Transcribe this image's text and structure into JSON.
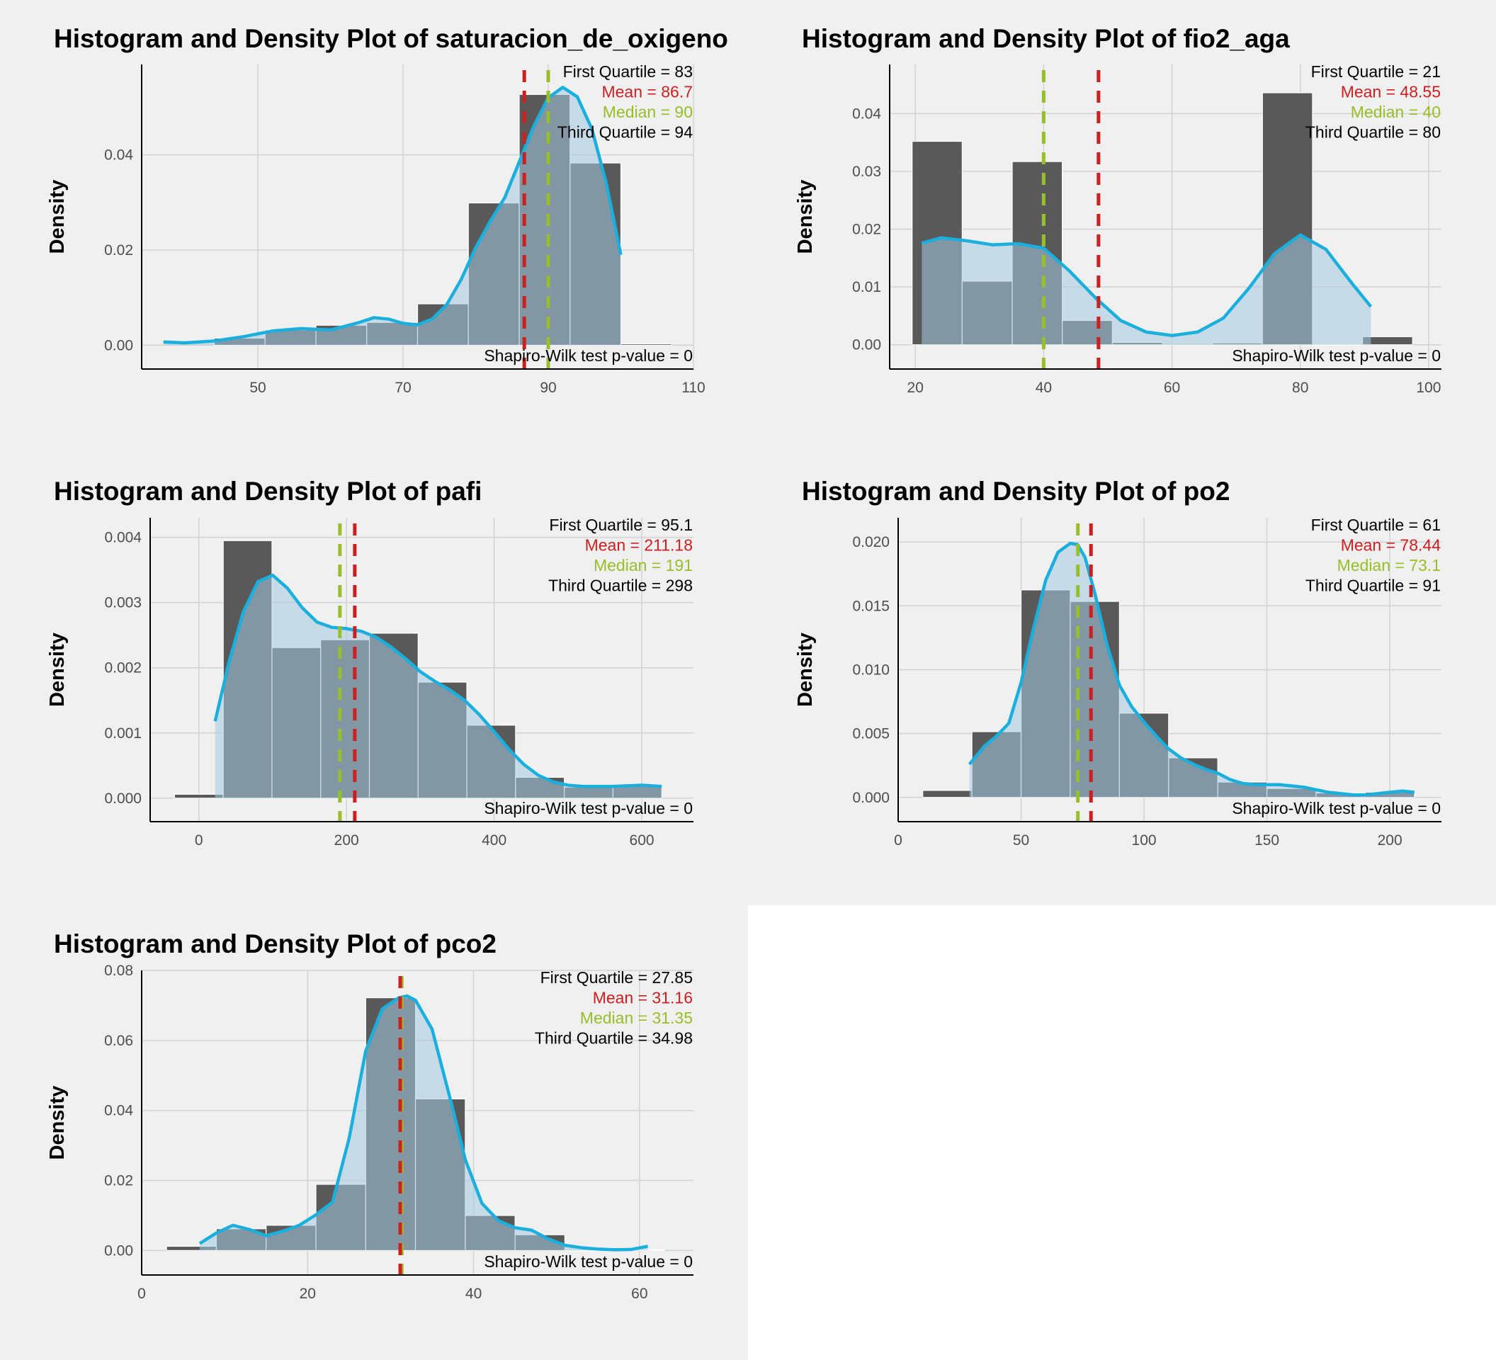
{
  "style": {
    "page_bg": "#f0f0f0",
    "outer_bg": "#ffffff",
    "hist_fill": "#595959",
    "overlap_fill": "#3a5a78",
    "density_fill": "#a5c8e1",
    "density_line": "#1aafdc",
    "mean_color": "#cc1f1f",
    "median_color": "#96bf2a",
    "text_color": "#000000"
  },
  "chart_data": [
    {
      "type": "bar",
      "title": "Histogram and Density Plot of saturacion_de_oxigeno",
      "ylabel": "Density",
      "xlabel": "",
      "xlim": [
        34,
        110
      ],
      "ylim": [
        -0.005,
        0.059
      ],
      "xticks": [
        50,
        70,
        90,
        110
      ],
      "xtick_labels": [
        "50",
        "70",
        "90",
        "110"
      ],
      "yticks": [
        0.0,
        0.02,
        0.04
      ],
      "ytick_labels": [
        "0.00",
        "0.02",
        "0.04"
      ],
      "bins": [
        {
          "x0": 44,
          "x1": 51,
          "value": 0.0015
        },
        {
          "x0": 51,
          "x1": 58,
          "value": 0.0032
        },
        {
          "x0": 58,
          "x1": 65,
          "value": 0.0042
        },
        {
          "x0": 65,
          "x1": 72,
          "value": 0.0048
        },
        {
          "x0": 72,
          "x1": 79,
          "value": 0.0087
        },
        {
          "x0": 79,
          "x1": 86,
          "value": 0.0299
        },
        {
          "x0": 86,
          "x1": 93,
          "value": 0.0527
        },
        {
          "x0": 93,
          "x1": 100,
          "value": 0.0383
        },
        {
          "x0": 100,
          "x1": 107,
          "value": 0.0003
        }
      ],
      "density": {
        "x": [
          37,
          40,
          44,
          48,
          52,
          56,
          60,
          64,
          66,
          68,
          70,
          72,
          74,
          76,
          78,
          80,
          82,
          84,
          86,
          88,
          90,
          92,
          94,
          96,
          98,
          100
        ],
        "y": [
          0.0007,
          0.0005,
          0.0009,
          0.0018,
          0.003,
          0.0035,
          0.0032,
          0.0048,
          0.0058,
          0.0055,
          0.0046,
          0.0043,
          0.0055,
          0.0085,
          0.0138,
          0.0205,
          0.026,
          0.031,
          0.0385,
          0.046,
          0.052,
          0.0542,
          0.0522,
          0.0455,
          0.034,
          0.019
        ]
      },
      "mean": 86.7,
      "median": 90,
      "annotations": {
        "first_quartile": "First Quartile = 83",
        "mean": "Mean = 86.7",
        "median": "Median = 90",
        "third_quartile": "Third Quartile = 94",
        "shapiro": "Shapiro-Wilk test p-value = 0"
      }
    },
    {
      "type": "bar",
      "title": "Histogram and Density Plot of fio2_aga",
      "ylabel": "Density",
      "xlabel": "",
      "xlim": [
        16,
        102
      ],
      "ylim": [
        -0.0042,
        0.0485
      ],
      "xticks": [
        20,
        40,
        60,
        80,
        100
      ],
      "xtick_labels": [
        "20",
        "40",
        "60",
        "80",
        "100"
      ],
      "yticks": [
        0.0,
        0.01,
        0.02,
        0.03,
        0.04
      ],
      "ytick_labels": [
        "0.00",
        "0.01",
        "0.02",
        "0.03",
        "0.04"
      ],
      "bins": [
        {
          "x0": 19.5,
          "x1": 27.3,
          "value": 0.0352
        },
        {
          "x0": 27.3,
          "x1": 35.1,
          "value": 0.011
        },
        {
          "x0": 35.1,
          "x1": 42.9,
          "value": 0.0317
        },
        {
          "x0": 42.9,
          "x1": 50.7,
          "value": 0.0042
        },
        {
          "x0": 50.7,
          "x1": 58.5,
          "value": 0.0004
        },
        {
          "x0": 58.5,
          "x1": 66.3,
          "value": 0.0002
        },
        {
          "x0": 66.3,
          "x1": 74.1,
          "value": 0.0003
        },
        {
          "x0": 74.1,
          "x1": 81.9,
          "value": 0.0436
        },
        {
          "x0": 81.9,
          "x1": 89.7,
          "value": 0.0
        },
        {
          "x0": 89.7,
          "x1": 97.5,
          "value": 0.0014
        }
      ],
      "density": {
        "x": [
          21,
          24,
          28,
          32,
          36,
          40,
          44,
          48,
          52,
          56,
          60,
          64,
          68,
          72,
          76,
          80,
          84,
          88,
          91
        ],
        "y": [
          0.0176,
          0.0185,
          0.018,
          0.0173,
          0.0175,
          0.0167,
          0.0128,
          0.0082,
          0.0042,
          0.0022,
          0.0016,
          0.0022,
          0.0046,
          0.0098,
          0.0158,
          0.019,
          0.0165,
          0.0107,
          0.0066
        ]
      },
      "mean": 48.55,
      "median": 40,
      "annotations": {
        "first_quartile": "First Quartile = 21",
        "mean": "Mean = 48.55",
        "median": "Median = 40",
        "third_quartile": "Third Quartile = 80",
        "shapiro": "Shapiro-Wilk test p-value = 0"
      }
    },
    {
      "type": "bar",
      "title": "Histogram and Density Plot of pafi",
      "ylabel": "Density",
      "xlabel": "",
      "xlim": [
        -66,
        670
      ],
      "ylim": [
        -0.00036,
        0.0043
      ],
      "xticks": [
        0,
        200,
        400,
        600
      ],
      "xtick_labels": [
        "0",
        "200",
        "400",
        "600"
      ],
      "yticks": [
        0.0,
        0.001,
        0.002,
        0.003,
        0.004
      ],
      "ytick_labels": [
        "0.000",
        "0.001",
        "0.002",
        "0.003",
        "0.004"
      ],
      "bins": [
        {
          "x0": -33,
          "x1": 33,
          "value": 6e-05
        },
        {
          "x0": 33,
          "x1": 99,
          "value": 0.00395
        },
        {
          "x0": 99,
          "x1": 165,
          "value": 0.00231
        },
        {
          "x0": 165,
          "x1": 231,
          "value": 0.00243
        },
        {
          "x0": 231,
          "x1": 297,
          "value": 0.00253
        },
        {
          "x0": 297,
          "x1": 363,
          "value": 0.00178
        },
        {
          "x0": 363,
          "x1": 429,
          "value": 0.00112
        },
        {
          "x0": 429,
          "x1": 495,
          "value": 0.00032
        },
        {
          "x0": 495,
          "x1": 561,
          "value": 0.00017
        },
        {
          "x0": 561,
          "x1": 627,
          "value": 0.00019
        }
      ],
      "density": {
        "x": [
          22,
          40,
          60,
          80,
          100,
          120,
          140,
          160,
          180,
          200,
          220,
          240,
          260,
          280,
          300,
          320,
          340,
          360,
          380,
          400,
          420,
          440,
          460,
          480,
          500,
          520,
          540,
          560,
          580,
          600,
          627
        ],
        "y": [
          0.00118,
          0.00205,
          0.00285,
          0.00332,
          0.00342,
          0.00322,
          0.00292,
          0.0027,
          0.00262,
          0.0026,
          0.00256,
          0.00247,
          0.00232,
          0.00214,
          0.00194,
          0.00179,
          0.00166,
          0.0015,
          0.00128,
          0.00102,
          0.00075,
          0.00052,
          0.00035,
          0.00025,
          0.0002,
          0.00018,
          0.00018,
          0.00018,
          0.00019,
          0.0002,
          0.00018
        ]
      },
      "mean": 211.18,
      "median": 191,
      "annotations": {
        "first_quartile": "First Quartile = 95.1",
        "mean": "Mean = 211.18",
        "median": "Median = 191",
        "third_quartile": "Third Quartile = 298",
        "shapiro": "Shapiro-Wilk test p-value = 0"
      }
    },
    {
      "type": "bar",
      "title": "Histogram and Density Plot of po2",
      "ylabel": "Density",
      "xlabel": "",
      "xlim": [
        0,
        221
      ],
      "ylim": [
        -0.0019,
        0.0219
      ],
      "xticks": [
        0,
        50,
        100,
        150,
        200
      ],
      "xtick_labels": [
        "0",
        "50",
        "100",
        "150",
        "200"
      ],
      "yticks": [
        0.0,
        0.005,
        0.01,
        0.015,
        0.02
      ],
      "ytick_labels": [
        "0.000",
        "0.005",
        "0.010",
        "0.015",
        "0.020"
      ],
      "bins": [
        {
          "x0": 10,
          "x1": 30,
          "value": 0.00055
        },
        {
          "x0": 30,
          "x1": 50,
          "value": 0.00515
        },
        {
          "x0": 50,
          "x1": 70,
          "value": 0.01625
        },
        {
          "x0": 70,
          "x1": 90,
          "value": 0.01535
        },
        {
          "x0": 90,
          "x1": 110,
          "value": 0.0066
        },
        {
          "x0": 110,
          "x1": 130,
          "value": 0.0031
        },
        {
          "x0": 130,
          "x1": 150,
          "value": 0.0012
        },
        {
          "x0": 150,
          "x1": 170,
          "value": 0.0007
        },
        {
          "x0": 170,
          "x1": 190,
          "value": 0.00035
        },
        {
          "x0": 190,
          "x1": 210,
          "value": 0.0004
        }
      ],
      "density": {
        "x": [
          29,
          35,
          40,
          45,
          50,
          55,
          60,
          65,
          70,
          73,
          76,
          80,
          85,
          90,
          95,
          100,
          105,
          110,
          115,
          120,
          125,
          130,
          135,
          140,
          145,
          150,
          155,
          160,
          165,
          170,
          175,
          180,
          185,
          190,
          195,
          200,
          205,
          210
        ],
        "y": [
          0.0026,
          0.004,
          0.0048,
          0.0058,
          0.009,
          0.0132,
          0.017,
          0.0192,
          0.0199,
          0.0198,
          0.0188,
          0.016,
          0.0119,
          0.0088,
          0.0071,
          0.0059,
          0.0048,
          0.0038,
          0.0031,
          0.0026,
          0.0022,
          0.0019,
          0.0014,
          0.0011,
          0.001,
          0.001,
          0.001,
          0.0009,
          0.0008,
          0.0006,
          0.0004,
          0.0003,
          0.0002,
          0.0002,
          0.0003,
          0.0004,
          0.0005,
          0.0004
        ]
      },
      "mean": 78.44,
      "median": 73.1,
      "annotations": {
        "first_quartile": "First Quartile = 61",
        "mean": "Mean = 78.44",
        "median": "Median = 73.1",
        "third_quartile": "Third Quartile = 91",
        "shapiro": "Shapiro-Wilk test p-value = 0"
      }
    },
    {
      "type": "bar",
      "title": "Histogram and Density Plot of pco2",
      "ylabel": "Density",
      "xlabel": "",
      "xlim": [
        0,
        66.5
      ],
      "ylim": [
        -0.007,
        0.08
      ],
      "xticks": [
        0,
        20,
        40,
        60
      ],
      "xtick_labels": [
        "0",
        "20",
        "40",
        "60"
      ],
      "yticks": [
        0.0,
        0.02,
        0.04,
        0.06,
        0.08
      ],
      "ytick_labels": [
        "0.00",
        "0.02",
        "0.04",
        "0.06",
        "0.08"
      ],
      "bins": [
        {
          "x0": 3,
          "x1": 9,
          "value": 0.0012
        },
        {
          "x0": 9,
          "x1": 15,
          "value": 0.0062
        },
        {
          "x0": 15,
          "x1": 21,
          "value": 0.0072
        },
        {
          "x0": 21,
          "x1": 27,
          "value": 0.0189
        },
        {
          "x0": 27,
          "x1": 33,
          "value": 0.0722
        },
        {
          "x0": 33,
          "x1": 39,
          "value": 0.0433
        },
        {
          "x0": 39,
          "x1": 45,
          "value": 0.01
        },
        {
          "x0": 45,
          "x1": 51,
          "value": 0.0045
        },
        {
          "x0": 51,
          "x1": 57,
          "value": 0.0
        },
        {
          "x0": 57,
          "x1": 63,
          "value": 0.0002
        }
      ],
      "density": {
        "x": [
          7,
          9,
          11,
          13,
          15,
          17,
          19,
          21,
          23,
          25,
          27,
          29,
          31,
          32,
          33,
          35,
          37,
          39,
          41,
          43,
          45,
          47,
          49,
          51,
          53,
          55,
          57,
          59,
          61
        ],
        "y": [
          0.002,
          0.005,
          0.0072,
          0.006,
          0.0042,
          0.0055,
          0.0072,
          0.0102,
          0.0138,
          0.032,
          0.057,
          0.069,
          0.0722,
          0.0727,
          0.0715,
          0.0632,
          0.045,
          0.026,
          0.0135,
          0.0085,
          0.0065,
          0.0058,
          0.0033,
          0.0015,
          0.0008,
          0.0004,
          0.0002,
          0.0003,
          0.0012
        ]
      },
      "mean": 31.16,
      "median": 31.35,
      "annotations": {
        "first_quartile": "First Quartile = 27.85",
        "mean": "Mean = 31.16",
        "median": "Median = 31.35",
        "third_quartile": "Third Quartile = 34.98",
        "shapiro": "Shapiro-Wilk test p-value = 0"
      }
    }
  ]
}
